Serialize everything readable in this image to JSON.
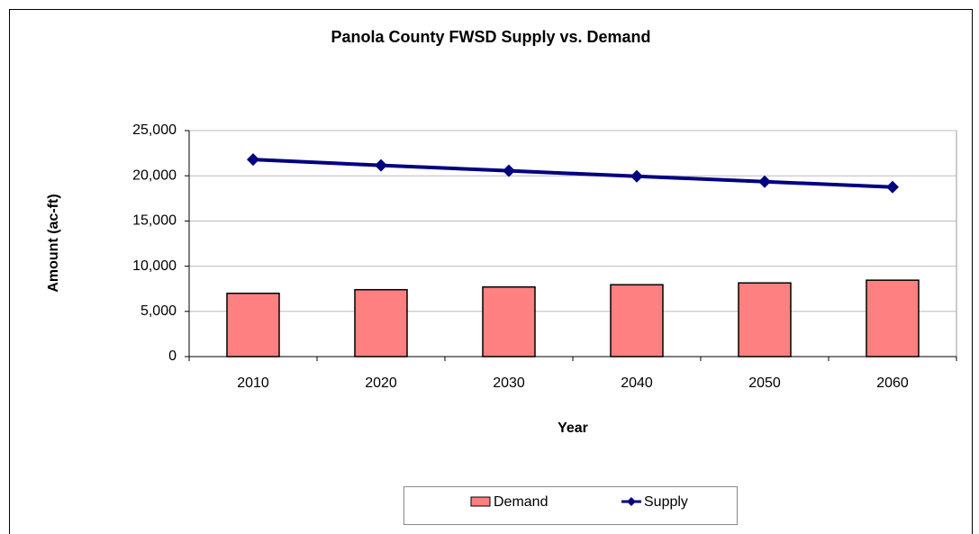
{
  "chart_data": {
    "type": "combo",
    "title": "Panola County FWSD Supply vs. Demand",
    "x_label": "Year",
    "y_label": "Amount (ac-ft)",
    "categories": [
      "2010",
      "2020",
      "2030",
      "2040",
      "2050",
      "2060"
    ],
    "series": [
      {
        "name": "Demand",
        "type": "bar",
        "color": "#ff8080",
        "values": [
          7000,
          7400,
          7700,
          7950,
          8150,
          8450
        ]
      },
      {
        "name": "Supply",
        "type": "line",
        "color": "#000080",
        "values": [
          21800,
          21150,
          20550,
          19950,
          19350,
          18750
        ]
      }
    ],
    "ylim": [
      0,
      25000
    ],
    "yticks": [
      0,
      {
        "value": 5000,
        "label": "5,000"
      },
      {
        "value": 10000,
        "label": "10,000"
      },
      {
        "value": 15000,
        "label": "15,000"
      },
      {
        "value": 20000,
        "label": "20,000"
      },
      {
        "value": 25000,
        "label": "25,000"
      }
    ],
    "grid": true,
    "legend": "bottom"
  }
}
